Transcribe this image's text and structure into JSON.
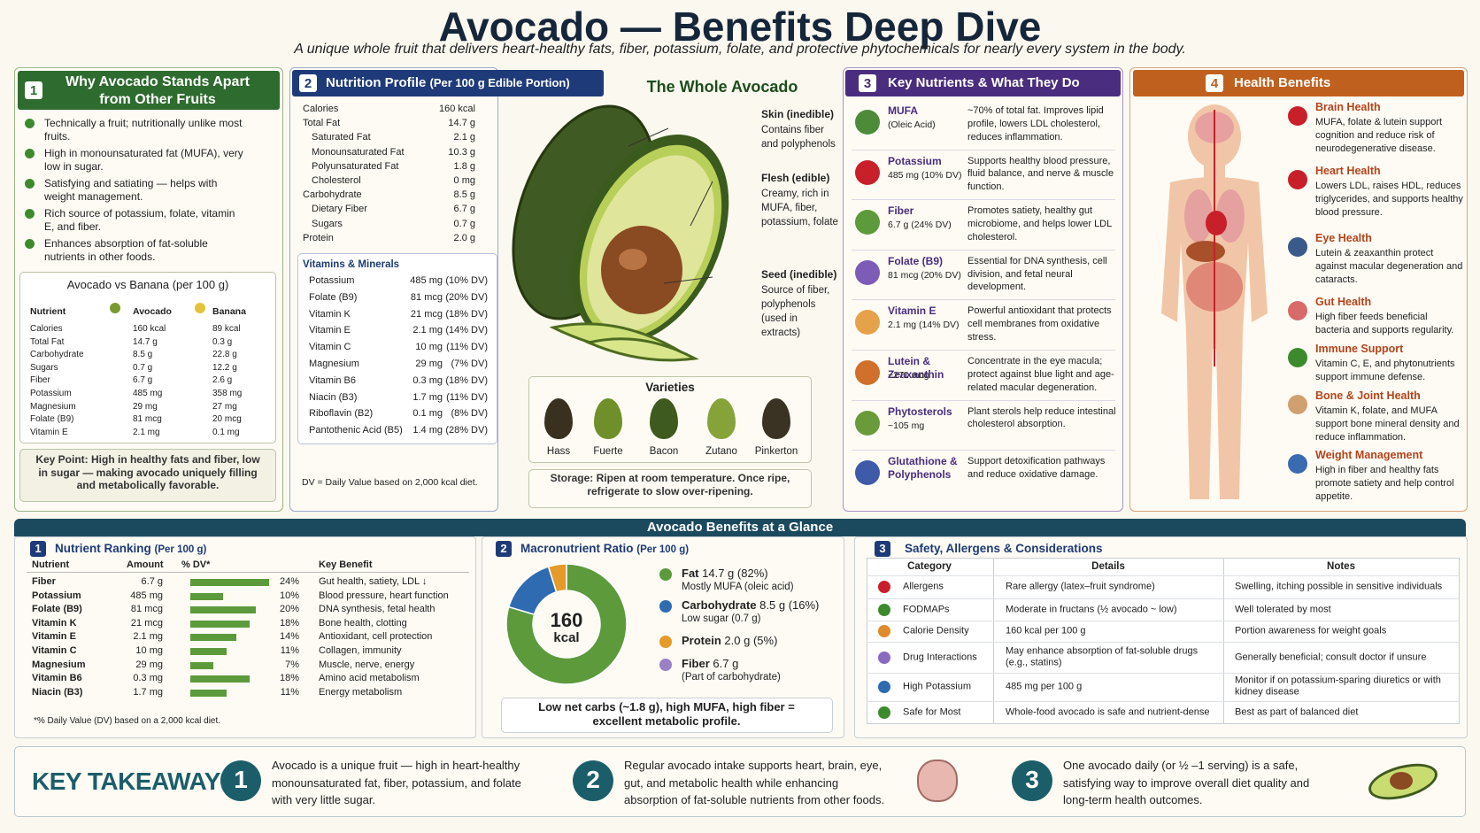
{
  "header": {
    "title": "Avocado — Benefits Deep Dive",
    "subtitle": "A unique whole fruit that delivers heart-healthy fats, fiber, potassium, folate, and protective phytochemicals for nearly every system in the body."
  },
  "why": {
    "number": "1",
    "title": "Why Avocado Stands Apart from Other Fruits",
    "points": [
      "Technically a fruit; nutritionally unlike most fruits.",
      "High in monounsaturated fat (MUFA), very low in sugar.",
      "Satisfying and satiating — helps with weight management.",
      "Rich source of potassium, folate, vitamin E, and fiber.",
      "Enhances absorption of fat-soluble nutrients in other foods."
    ]
  },
  "comparison": {
    "title": "Avocado vs Banana (per 100 g)",
    "columns": [
      "Nutrient",
      "Avocado",
      "Banana"
    ],
    "rows": [
      [
        "Calories",
        "160 kcal",
        "89 kcal"
      ],
      [
        "Total Fat",
        "14.7 g",
        "0.3 g"
      ],
      [
        "Carbohydrate",
        "8.5 g",
        "22.8 g"
      ],
      [
        "Sugars",
        "0.7 g",
        "12.2 g"
      ],
      [
        "Fiber",
        "6.7 g",
        "2.6 g"
      ],
      [
        "Potassium",
        "485 mg",
        "358 mg"
      ],
      [
        "Magnesium",
        "29 mg",
        "27 mg"
      ],
      [
        "Folate (B9)",
        "81 mcg",
        "20 mcg"
      ],
      [
        "Vitamin E",
        "2.1 mg",
        "0.1 mg"
      ]
    ]
  },
  "key_point": "Key Point: High in healthy fats and fiber, low in sugar — making avocado uniquely filling and metabolically favorable.",
  "nutrition": {
    "number": "2",
    "title": "Nutrition Profile",
    "title_note": "(Per 100 g Edible Portion)",
    "rows": [
      [
        "Calories",
        "160 kcal"
      ],
      [
        "Total Fat",
        "14.7 g"
      ],
      [
        "Saturated Fat",
        "2.1 g"
      ],
      [
        "Monounsaturated Fat",
        "10.3 g"
      ],
      [
        "Polyunsaturated Fat",
        "1.8 g"
      ],
      [
        "Cholesterol",
        "0 mg"
      ],
      [
        "Carbohydrate",
        "8.5 g"
      ],
      [
        "Dietary Fiber",
        "6.7 g"
      ],
      [
        "Sugars",
        "0.7 g"
      ],
      [
        "Protein",
        "2.0 g"
      ]
    ],
    "vitamins_title": "Vitamins & Minerals",
    "vitamins": [
      [
        "Potassium",
        "485 mg",
        "(10% DV)"
      ],
      [
        "Folate (B9)",
        "81 mcg",
        "(20% DV)"
      ],
      [
        "Vitamin K",
        "21 mcg",
        "(18% DV)"
      ],
      [
        "Vitamin E",
        "2.1 mg",
        "(14% DV)"
      ],
      [
        "Vitamin C",
        "10 mg",
        "(11% DV)"
      ],
      [
        "Magnesium",
        "29 mg",
        "(7% DV)"
      ],
      [
        "Vitamin B6",
        "0.3 mg",
        "(18% DV)"
      ],
      [
        "Niacin (B3)",
        "1.7 mg",
        "(11% DV)"
      ],
      [
        "Riboflavin (B2)",
        "0.1 mg",
        "(8% DV)"
      ],
      [
        "Pantothenic Acid (B5)",
        "1.4 mg",
        "(28% DV)"
      ]
    ],
    "footnote": "DV = Daily Value based on 2,000 kcal diet."
  },
  "whole": {
    "title": "The Whole Avocado",
    "parts": [
      {
        "name": "Skin (inedible)",
        "desc": "Contains fiber and polyphenols"
      },
      {
        "name": "Flesh (edible)",
        "desc": "Creamy, rich in MUFA, fiber, potassium, folate"
      },
      {
        "name": "Seed (inedible)",
        "desc": "Source of fiber, polyphenols (used in extracts)"
      }
    ],
    "varieties_title": "Varieties",
    "varieties": [
      "Hass",
      "Fuerte",
      "Bacon",
      "Zutano",
      "Pinkerton"
    ],
    "storage": "Storage: Ripen at room temperature. Once ripe, refrigerate to slow over-ripening."
  },
  "key_nutrients": {
    "number": "3",
    "title": "Key Nutrients & What They Do",
    "items": [
      {
        "name": "MUFA",
        "detail": "(Oleic Acid)",
        "desc": "~70% of total fat. Improves lipid profile, lowers LDL cholesterol, reduces inflammation."
      },
      {
        "name": "Potassium",
        "detail": "485 mg (10% DV)",
        "desc": "Supports healthy blood pressure, fluid balance, and nerve & muscle function."
      },
      {
        "name": "Fiber",
        "detail": "6.7 g (24% DV)",
        "desc": "Promotes satiety, healthy gut microbiome, and helps lower LDL cholesterol."
      },
      {
        "name": "Folate (B9)",
        "detail": "81 mcg (20% DV)",
        "desc": "Essential for DNA synthesis, cell division, and fetal neural development."
      },
      {
        "name": "Vitamin E",
        "detail": "2.1 mg (14% DV)",
        "desc": "Powerful antioxidant that protects cell membranes from oxidative stress."
      },
      {
        "name": "Lutein & Zeaxanthin",
        "detail": "~271 mcg",
        "desc": "Concentrate in the eye macula; protect against blue light and age-related macular degeneration."
      },
      {
        "name": "Phytosterols",
        "detail": "~105 mg",
        "desc": "Plant sterols help reduce intestinal cholesterol absorption."
      },
      {
        "name": "Glutathione & Polyphenols",
        "desc": "Support detoxification pathways and reduce oxidative damage."
      }
    ]
  },
  "health": {
    "number": "4",
    "title": "Health Benefits",
    "items": [
      {
        "name": "Brain Health",
        "desc": "MUFA, folate & lutein support cognition and reduce risk of neurodegenerative disease."
      },
      {
        "name": "Heart Health",
        "desc": "Lowers LDL, raises HDL, reduces triglycerides, and supports healthy blood pressure."
      },
      {
        "name": "Eye Health",
        "desc": "Lutein & zeaxanthin protect against macular degeneration and cataracts."
      },
      {
        "name": "Gut Health",
        "desc": "High fiber feeds beneficial bacteria and supports regularity."
      },
      {
        "name": "Immune Support",
        "desc": "Vitamin C, E, and phytonutrients support immune defense."
      },
      {
        "name": "Bone & Joint Health",
        "desc": "Vitamin K, folate, and MUFA support bone mineral density and reduce inflammation."
      },
      {
        "name": "Weight Management",
        "desc": "High in fiber and healthy fats promote satiety and help control appetite."
      }
    ]
  },
  "glance": {
    "title": "Avocado Benefits at a Glance"
  },
  "ranking": {
    "number": "1",
    "title": "Nutrient Ranking",
    "title_note": "(Per 100 g)",
    "columns": [
      "Nutrient",
      "Amount",
      "% DV*",
      "Key Benefit"
    ],
    "rows": [
      {
        "nutrient": "Fiber",
        "amount": "6.7 g",
        "dv": 24,
        "dv_label": "24%",
        "benefit": "Gut health, satiety, LDL ↓"
      },
      {
        "nutrient": "Potassium",
        "amount": "485 mg",
        "dv": 10,
        "dv_label": "10%",
        "benefit": "Blood pressure, heart function"
      },
      {
        "nutrient": "Folate (B9)",
        "amount": "81 mcg",
        "dv": 20,
        "dv_label": "20%",
        "benefit": "DNA synthesis, fetal health"
      },
      {
        "nutrient": "Vitamin K",
        "amount": "21 mcg",
        "dv": 18,
        "dv_label": "18%",
        "benefit": "Bone health, clotting"
      },
      {
        "nutrient": "Vitamin E",
        "amount": "2.1 mg",
        "dv": 14,
        "dv_label": "14%",
        "benefit": "Antioxidant, cell protection"
      },
      {
        "nutrient": "Vitamin C",
        "amount": "10 mg",
        "dv": 11,
        "dv_label": "11%",
        "benefit": "Collagen, immunity"
      },
      {
        "nutrient": "Magnesium",
        "amount": "29 mg",
        "dv": 7,
        "dv_label": "7%",
        "benefit": "Muscle, nerve, energy"
      },
      {
        "nutrient": "Vitamin B6",
        "amount": "0.3 mg",
        "dv": 18,
        "dv_label": "18%",
        "benefit": "Amino acid metabolism"
      },
      {
        "nutrient": "Niacin (B3)",
        "amount": "1.7 mg",
        "dv": 11,
        "dv_label": "11%",
        "benefit": "Energy metabolism"
      }
    ],
    "footnote": "*% Daily Value (DV) based on a 2,000 kcal diet."
  },
  "macro": {
    "number": "2",
    "title": "Macronutrient Ratio",
    "title_note": "(Per 100 g)",
    "center_value": "160",
    "center_unit": "kcal",
    "items": [
      {
        "name": "Fat",
        "amount": "14.7 g",
        "percent": 82,
        "percent_label": "(82%)",
        "note": "Mostly MUFA (oleic acid)",
        "color": "#5c9a3c"
      },
      {
        "name": "Carbohydrate",
        "amount": "8.5 g",
        "percent": 16,
        "percent_label": "(16%)",
        "note": "Low sugar (0.7 g)",
        "color": "#2f6bb0"
      },
      {
        "name": "Protein",
        "amount": "2.0 g",
        "percent": 5,
        "percent_label": "(5%)",
        "color": "#e59a2a"
      },
      {
        "name": "Fiber",
        "amount": "6.7 g",
        "note": "(Part of carbohydrate)",
        "color": "#9b80c6"
      }
    ],
    "summary": "Low net carbs (~1.8 g), high MUFA, high fiber = excellent metabolic profile."
  },
  "safety": {
    "number": "3",
    "title": "Safety, Allergens & Considerations",
    "columns": [
      "Category",
      "Details",
      "Notes"
    ],
    "rows": [
      [
        "Allergens",
        "Rare allergy (latex–fruit syndrome)",
        "Swelling, itching possible in sensitive individuals"
      ],
      [
        "FODMAPs",
        "Moderate in fructans (½ avocado ~ low)",
        "Well tolerated by most"
      ],
      [
        "Calorie Density",
        "160 kcal per 100 g",
        "Portion awareness for weight goals"
      ],
      [
        "Drug Interactions",
        "May enhance absorption of fat-soluble drugs (e.g., statins)",
        "Generally beneficial; consult doctor if unsure"
      ],
      [
        "High Potassium",
        "485 mg per 100 g",
        "Monitor if on potassium-sparing diuretics or with kidney disease"
      ],
      [
        "Safe for Most",
        "Whole-food avocado is safe and nutrient-dense",
        "Best as part of balanced diet"
      ]
    ]
  },
  "takeaways": {
    "title": "KEY TAKEAWAYS",
    "items": [
      {
        "number": "1",
        "text": "Avocado is a unique fruit — high in heart-healthy monounsaturated fat, fiber, potassium, and folate with very little sugar."
      },
      {
        "number": "2",
        "text": "Regular avocado intake supports heart, brain, eye, gut, and metabolic health while enhancing absorption of fat-soluble nutrients from other foods."
      },
      {
        "number": "3",
        "text": "One avocado daily (or ½ –1 serving) is a safe, satisfying way to improve overall diet quality and long-term health outcomes."
      }
    ]
  }
}
